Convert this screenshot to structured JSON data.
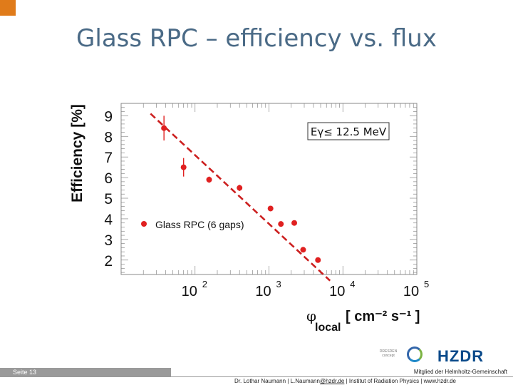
{
  "slide": {
    "title": "Glass RPC – efficiency vs. flux",
    "page_label": "Seite 13",
    "member_text": "Mitglied der Helmholtz-Gemeinschaft",
    "contact_name": "Dr. Lothar Naumann | L.Naumann",
    "contact_email": "@hzdr.de",
    "contact_rest": " | Institut of Radiation Physics | www.hzdr.de",
    "logo_dresden_line1": "DRESDEN",
    "logo_dresden_line2": "concept",
    "logo_hzdr": "HZDR"
  },
  "chart_data": {
    "type": "scatter",
    "title": "",
    "xlabel": "φ",
    "xlabel_sub": "local",
    "xlabel_units": "[ cm⁻² s⁻¹ ]",
    "ylabel": "Efficiency [%]",
    "xscale": "log",
    "xlim": [
      10,
      100000
    ],
    "ylim": [
      1.3,
      9.6
    ],
    "yticks": [
      "9",
      "8",
      "7",
      "6",
      "5",
      "4",
      "3",
      "2"
    ],
    "ytick_values": [
      9,
      8,
      7,
      6,
      5,
      4,
      3,
      2
    ],
    "xticks": [
      {
        "value": 100,
        "base": "10",
        "exp": "2"
      },
      {
        "value": 1000,
        "base": "10",
        "exp": "3"
      },
      {
        "value": 10000,
        "base": "10",
        "exp": "4"
      },
      {
        "value": 100000,
        "base": "10",
        "exp": "5"
      }
    ],
    "annotation": "Eγ≤ 12.5 MeV",
    "legend": "Glass RPC (6 gaps)",
    "series": [
      {
        "name": "Glass RPC (6 gaps)",
        "color": "#e02020",
        "x": [
          38,
          70,
          155,
          400,
          1050,
          1450,
          2200,
          2900,
          4600
        ],
        "y": [
          8.4,
          6.5,
          5.9,
          5.5,
          4.5,
          3.75,
          3.8,
          2.5,
          2.0
        ],
        "yerr": [
          0.6,
          0.45,
          0.15,
          0.15,
          0.1,
          0.08,
          0.08,
          0.1,
          0.1
        ]
      }
    ],
    "fit": {
      "style": "dashed",
      "color": "#cc1f1f",
      "x": [
        25,
        6700
      ],
      "y": [
        9.1,
        1.0
      ]
    }
  }
}
